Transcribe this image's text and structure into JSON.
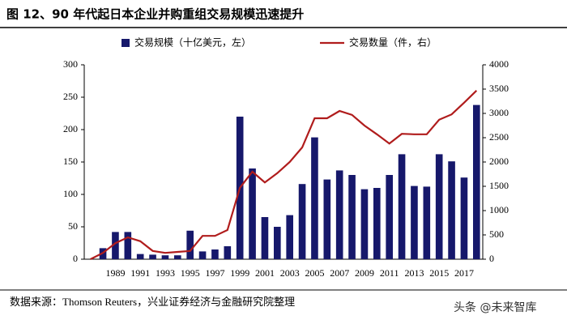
{
  "chart_data": {
    "type": "bar-line",
    "title": "图 12、90 年代起日本企业并购重组交易规模迅速提升",
    "source": "数据来源：Thomson Reuters，兴业证券经济与金融研究院整理",
    "watermark": "头条 @未来智库",
    "categories": [
      null,
      null,
      "1989",
      null,
      "1991",
      null,
      "1993",
      null,
      "1995",
      null,
      "1997",
      null,
      "1999",
      null,
      "2001",
      null,
      "2003",
      null,
      "2005",
      null,
      "2007",
      null,
      "2009",
      null,
      "2011",
      null,
      "2013",
      null,
      "2015",
      null,
      "2017",
      null
    ],
    "series": [
      {
        "name": "交易规模（十亿美元，左）",
        "color": "#16186b",
        "kind": "bar",
        "values": [
          null,
          17,
          42,
          42,
          8,
          7,
          6,
          6,
          44,
          12,
          15,
          20,
          220,
          140,
          65,
          50,
          68,
          116,
          188,
          123,
          137,
          130,
          108,
          110,
          130,
          162,
          113,
          112,
          162,
          151,
          126,
          238
        ]
      },
      {
        "name": "交易数量（件，右）",
        "color": "#b01c1c",
        "kind": "line",
        "axis": "y2",
        "values": [
          0,
          130,
          330,
          450,
          370,
          170,
          130,
          150,
          170,
          480,
          480,
          600,
          1470,
          1800,
          1580,
          1770,
          2000,
          2300,
          2900,
          2900,
          3050,
          2970,
          2750,
          2570,
          2380,
          2580,
          2570,
          2570,
          2870,
          2980,
          3220,
          3470
        ]
      }
    ],
    "ylim": [
      0,
      300
    ],
    "yticks": [
      0,
      50,
      100,
      150,
      200,
      250,
      300
    ],
    "y2lim": [
      0,
      4000
    ],
    "y2ticks": [
      0,
      500,
      1000,
      1500,
      2000,
      2500,
      3000,
      3500,
      4000
    ],
    "legend": "top"
  }
}
